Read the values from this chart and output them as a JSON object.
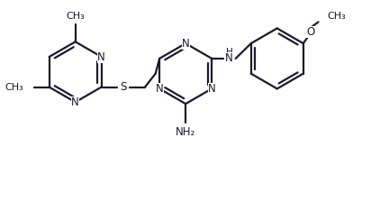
{
  "background": "#ffffff",
  "line_color": "#1a1a2e",
  "line_width": 1.6,
  "font_size": 8.5,
  "figsize": [
    4.22,
    2.34
  ],
  "dpi": 100,
  "xlim": [
    0,
    8.5
  ],
  "ylim": [
    -0.5,
    4.5
  ]
}
